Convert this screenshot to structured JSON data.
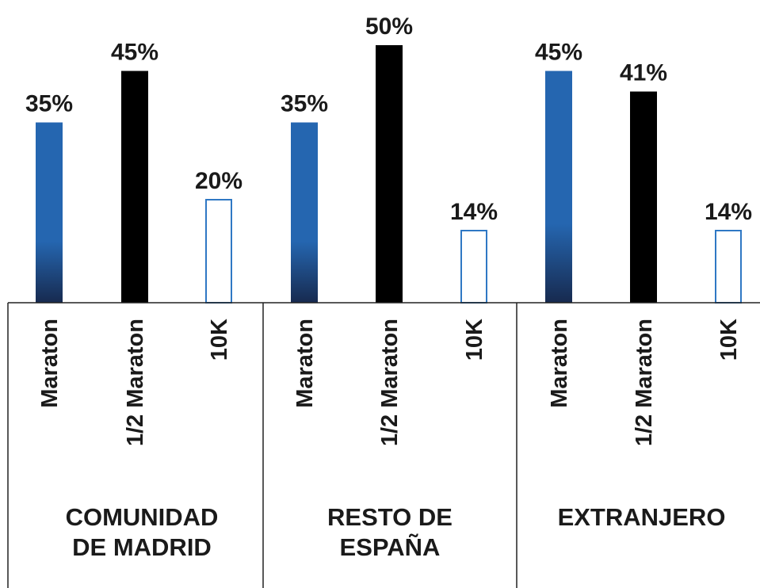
{
  "chart_data": {
    "type": "bar",
    "title": "",
    "xlabel": "",
    "ylabel": "",
    "ylim": [
      0,
      55
    ],
    "groups": [
      {
        "label_lines": [
          "COMUNIDAD",
          "DE MADRID"
        ],
        "bars": [
          {
            "category": "Maraton",
            "value": 35,
            "label": "35%",
            "style": "blue"
          },
          {
            "category": "1/2 Maraton",
            "value": 45,
            "label": "45%",
            "style": "black"
          },
          {
            "category": "10K",
            "value": 20,
            "label": "20%",
            "style": "outline"
          }
        ]
      },
      {
        "label_lines": [
          "RESTO DE",
          "ESPAÑA"
        ],
        "bars": [
          {
            "category": "Maraton",
            "value": 35,
            "label": "35%",
            "style": "blue"
          },
          {
            "category": "1/2 Maraton",
            "value": 50,
            "label": "50%",
            "style": "black"
          },
          {
            "category": "10K",
            "value": 14,
            "label": "14%",
            "style": "outline"
          }
        ]
      },
      {
        "label_lines": [
          "EXTRANJERO"
        ],
        "bars": [
          {
            "category": "Maraton",
            "value": 45,
            "label": "45%",
            "style": "blue"
          },
          {
            "category": "1/2 Maraton",
            "value": 41,
            "label": "41%",
            "style": "black"
          },
          {
            "category": "10K",
            "value": 14,
            "label": "14%",
            "style": "outline"
          }
        ]
      }
    ],
    "colors": {
      "blue_top": "#2566b0",
      "blue_bottom": "#172a4f",
      "black": "#000000",
      "outline": "#2f78c4",
      "axis": "#222222"
    },
    "grid": false,
    "legend": "none"
  }
}
